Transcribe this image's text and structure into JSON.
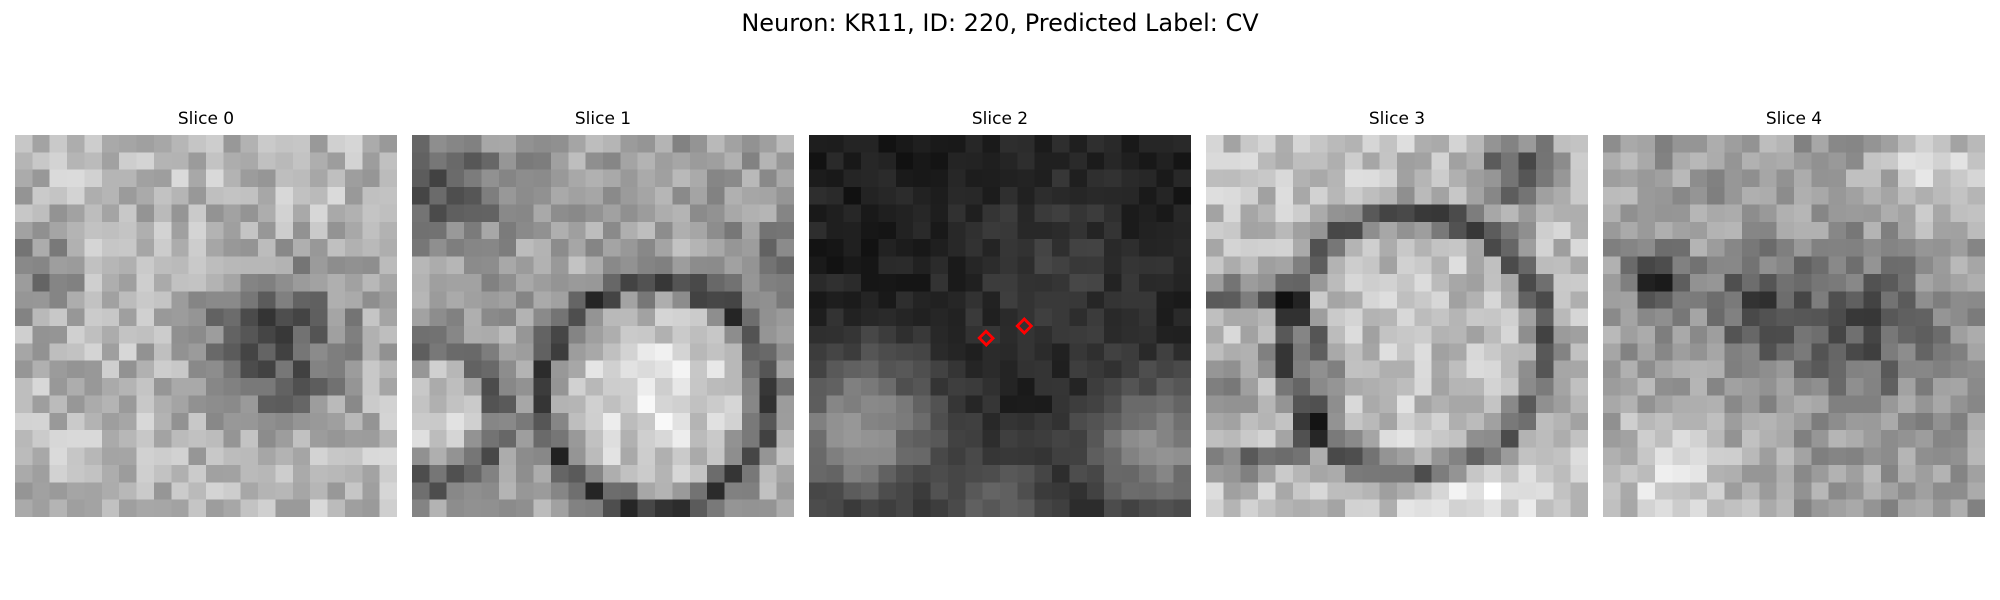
{
  "figure": {
    "title": "Neuron: KR11, ID: 220, Predicted Label: CV"
  },
  "panels": [
    {
      "title": "Slice 0",
      "has_markers": false
    },
    {
      "title": "Slice 1",
      "has_markers": false
    },
    {
      "title": "Slice 2",
      "has_markers": true
    },
    {
      "title": "Slice 3",
      "has_markers": false
    },
    {
      "title": "Slice 4",
      "has_markers": false
    }
  ],
  "image": {
    "colormap": "grayscale",
    "grid_size": 22
  },
  "markers": {
    "shape": "diamond",
    "color": "#ff0000",
    "count": 2
  }
}
